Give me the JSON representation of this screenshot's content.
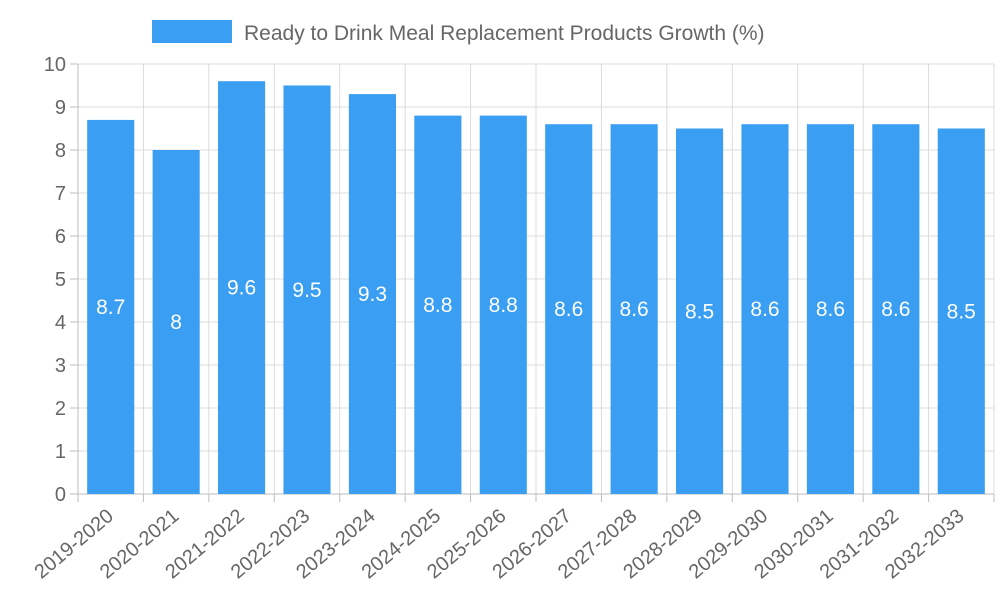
{
  "chart_data": {
    "type": "bar",
    "title": "",
    "xlabel": "",
    "ylabel": "",
    "categories": [
      "2019-2020",
      "2020-2021",
      "2021-2022",
      "2022-2023",
      "2023-2024",
      "2024-2025",
      "2025-2026",
      "2026-2027",
      "2027-2028",
      "2028-2029",
      "2029-2030",
      "2030-2031",
      "2031-2032",
      "2032-2033"
    ],
    "series": [
      {
        "name": "Ready to Drink Meal Replacement Products Growth (%)",
        "values": [
          8.7,
          8,
          9.6,
          9.5,
          9.3,
          8.8,
          8.8,
          8.6,
          8.6,
          8.5,
          8.6,
          8.6,
          8.6,
          8.5
        ],
        "color": "#3a9ef2"
      }
    ],
    "ylim": [
      0,
      10
    ],
    "yticks": [
      0,
      1,
      2,
      3,
      4,
      5,
      6,
      7,
      8,
      9,
      10
    ],
    "grid": true,
    "legend": "top-center",
    "data_labels": true
  }
}
